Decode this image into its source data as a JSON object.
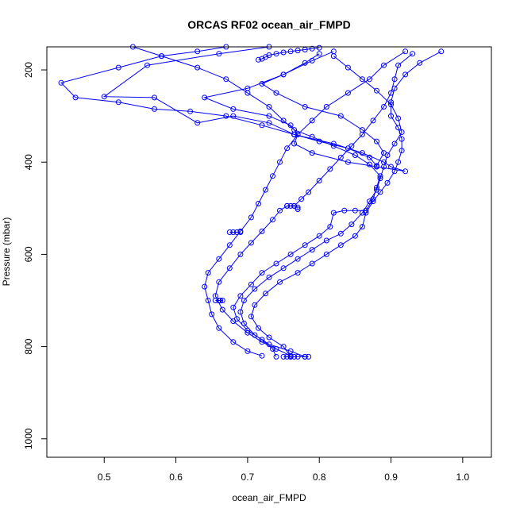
{
  "chart_data": {
    "type": "line",
    "title": "ORCAS RF02 ocean_air_FMPD",
    "xlabel": "ocean_air_FMPD",
    "ylabel": "Pressure (mbar)",
    "xlim": [
      0.42,
      1.04
    ],
    "ylim": [
      1040,
      150
    ],
    "y_inverted": true,
    "x_ticks": [
      0.5,
      0.6,
      0.7,
      0.8,
      0.9,
      1.0
    ],
    "x_tick_labels": [
      "0.5",
      "0.6",
      "0.7",
      "0.8",
      "0.9",
      "1.0"
    ],
    "y_ticks": [
      200,
      400,
      600,
      800,
      1000
    ],
    "y_tick_labels": [
      "200",
      "400",
      "600",
      "800",
      "1000"
    ],
    "grid": false,
    "legend": "none",
    "marker": "open-circle",
    "color": "#0000ff",
    "series": [
      {
        "values": [
          [
            0.72,
            820
          ],
          [
            0.7,
            810
          ],
          [
            0.68,
            790
          ],
          [
            0.66,
            760
          ],
          [
            0.65,
            730
          ],
          [
            0.645,
            700
          ],
          [
            0.64,
            670
          ],
          [
            0.645,
            640
          ],
          [
            0.66,
            610
          ],
          [
            0.675,
            580
          ],
          [
            0.69,
            550
          ],
          [
            0.705,
            520
          ],
          [
            0.715,
            490
          ],
          [
            0.725,
            460
          ],
          [
            0.735,
            430
          ],
          [
            0.745,
            400
          ],
          [
            0.755,
            370
          ],
          [
            0.77,
            340
          ],
          [
            0.79,
            310
          ],
          [
            0.81,
            280
          ],
          [
            0.84,
            250
          ],
          [
            0.87,
            220
          ],
          [
            0.89,
            190
          ],
          [
            0.92,
            160
          ]
        ]
      },
      {
        "values": [
          [
            0.76,
            820
          ],
          [
            0.74,
            805
          ],
          [
            0.72,
            790
          ],
          [
            0.7,
            770
          ],
          [
            0.68,
            745
          ],
          [
            0.665,
            720
          ],
          [
            0.655,
            690
          ],
          [
            0.66,
            660
          ],
          [
            0.675,
            630
          ],
          [
            0.69,
            600
          ],
          [
            0.705,
            575
          ],
          [
            0.72,
            550
          ],
          [
            0.735,
            525
          ],
          [
            0.745,
            505
          ],
          [
            0.755,
            495
          ],
          [
            0.765,
            495
          ],
          [
            0.775,
            480
          ],
          [
            0.785,
            465
          ],
          [
            0.8,
            440
          ],
          [
            0.815,
            415
          ],
          [
            0.83,
            390
          ],
          [
            0.845,
            365
          ],
          [
            0.86,
            340
          ],
          [
            0.875,
            310
          ],
          [
            0.89,
            280
          ],
          [
            0.9,
            250
          ],
          [
            0.905,
            220
          ],
          [
            0.91,
            190
          ],
          [
            0.93,
            165
          ]
        ]
      },
      {
        "values": [
          [
            0.78,
            822
          ],
          [
            0.76,
            810
          ],
          [
            0.73,
            795
          ],
          [
            0.71,
            775
          ],
          [
            0.695,
            750
          ],
          [
            0.69,
            725
          ],
          [
            0.695,
            700
          ],
          [
            0.71,
            675
          ],
          [
            0.73,
            650
          ],
          [
            0.75,
            630
          ],
          [
            0.77,
            610
          ],
          [
            0.79,
            590
          ],
          [
            0.81,
            570
          ],
          [
            0.83,
            555
          ],
          [
            0.845,
            535
          ],
          [
            0.86,
            510
          ],
          [
            0.87,
            485
          ],
          [
            0.88,
            460
          ],
          [
            0.885,
            435
          ],
          [
            0.89,
            410
          ],
          [
            0.895,
            385
          ],
          [
            0.905,
            360
          ],
          [
            0.915,
            335
          ],
          [
            0.91,
            305
          ],
          [
            0.9,
            275
          ],
          [
            0.88,
            245
          ],
          [
            0.86,
            220
          ],
          [
            0.84,
            195
          ],
          [
            0.82,
            170
          ]
        ]
      },
      {
        "values": [
          [
            0.76,
            822
          ],
          [
            0.75,
            800
          ],
          [
            0.73,
            780
          ],
          [
            0.715,
            760
          ],
          [
            0.705,
            735
          ],
          [
            0.71,
            710
          ],
          [
            0.725,
            685
          ],
          [
            0.745,
            660
          ],
          [
            0.77,
            640
          ],
          [
            0.79,
            620
          ],
          [
            0.81,
            600
          ],
          [
            0.83,
            580
          ],
          [
            0.85,
            560
          ],
          [
            0.86,
            540
          ],
          [
            0.865,
            510
          ],
          [
            0.875,
            485
          ],
          [
            0.885,
            465
          ],
          [
            0.895,
            445
          ],
          [
            0.905,
            420
          ],
          [
            0.91,
            400
          ],
          [
            0.915,
            375
          ],
          [
            0.915,
            350
          ],
          [
            0.91,
            325
          ],
          [
            0.9,
            300
          ],
          [
            0.9,
            270
          ],
          [
            0.905,
            240
          ],
          [
            0.92,
            210
          ],
          [
            0.94,
            185
          ],
          [
            0.97,
            160
          ]
        ]
      },
      {
        "values": [
          [
            0.74,
            822
          ],
          [
            0.735,
            805
          ],
          [
            0.72,
            785
          ],
          [
            0.7,
            765
          ],
          [
            0.685,
            740
          ],
          [
            0.68,
            715
          ],
          [
            0.69,
            690
          ],
          [
            0.705,
            665
          ],
          [
            0.72,
            640
          ],
          [
            0.74,
            620
          ],
          [
            0.76,
            600
          ],
          [
            0.78,
            580
          ],
          [
            0.8,
            560
          ],
          [
            0.815,
            540
          ],
          [
            0.82,
            510
          ],
          [
            0.835,
            505
          ],
          [
            0.85,
            505
          ],
          [
            0.865,
            505
          ],
          [
            0.875,
            480
          ],
          [
            0.88,
            455
          ],
          [
            0.885,
            430
          ],
          [
            0.87,
            405
          ],
          [
            0.85,
            385
          ],
          [
            0.82,
            365
          ],
          [
            0.79,
            345
          ],
          [
            0.765,
            330
          ],
          [
            0.75,
            310
          ],
          [
            0.73,
            280
          ],
          [
            0.7,
            250
          ],
          [
            0.67,
            220
          ],
          [
            0.63,
            195
          ],
          [
            0.58,
            170
          ],
          [
            0.54,
            150
          ]
        ]
      },
      {
        "values": [
          [
            0.765,
            340
          ],
          [
            0.72,
            320
          ],
          [
            0.67,
            300
          ],
          [
            0.62,
            290
          ],
          [
            0.57,
            285
          ],
          [
            0.52,
            270
          ],
          [
            0.46,
            260
          ],
          [
            0.44,
            228
          ],
          [
            0.52,
            195
          ],
          [
            0.58,
            170
          ],
          [
            0.63,
            160
          ],
          [
            0.67,
            150
          ]
        ]
      },
      {
        "values": [
          [
            0.765,
            340
          ],
          [
            0.73,
            315
          ],
          [
            0.68,
            300
          ],
          [
            0.63,
            315
          ],
          [
            0.57,
            260
          ],
          [
            0.5,
            258
          ],
          [
            0.56,
            190
          ],
          [
            0.66,
            165
          ],
          [
            0.73,
            150
          ]
        ]
      },
      {
        "values": [
          [
            0.765,
            340
          ],
          [
            0.82,
            360
          ],
          [
            0.86,
            380
          ],
          [
            0.89,
            400
          ],
          [
            0.9,
            410
          ],
          [
            0.92,
            420
          ],
          [
            0.88,
            410
          ],
          [
            0.84,
            400
          ],
          [
            0.79,
            380
          ],
          [
            0.765,
            360
          ],
          [
            0.77,
            340
          ],
          [
            0.76,
            320
          ],
          [
            0.73,
            300
          ],
          [
            0.68,
            285
          ],
          [
            0.64,
            260
          ],
          [
            0.7,
            240
          ],
          [
            0.75,
            210
          ],
          [
            0.79,
            180
          ],
          [
            0.82,
            160
          ]
        ]
      },
      {
        "values": [
          [
            0.765,
            340
          ],
          [
            0.8,
            355
          ],
          [
            0.84,
            370
          ],
          [
            0.87,
            390
          ],
          [
            0.88,
            408
          ],
          [
            0.89,
            380
          ],
          [
            0.88,
            355
          ],
          [
            0.86,
            330
          ],
          [
            0.83,
            300
          ],
          [
            0.78,
            280
          ],
          [
            0.74,
            250
          ],
          [
            0.72,
            230
          ],
          [
            0.75,
            210
          ],
          [
            0.78,
            185
          ],
          [
            0.8,
            165
          ]
        ]
      },
      {
        "values": [
          [
            0.75,
            822
          ],
          [
            0.755,
            822
          ],
          [
            0.76,
            822
          ],
          [
            0.765,
            822
          ],
          [
            0.77,
            822
          ],
          [
            0.78,
            822
          ],
          [
            0.785,
            822
          ]
        ]
      },
      {
        "values": [
          [
            0.755,
            495
          ],
          [
            0.76,
            495
          ],
          [
            0.765,
            495
          ],
          [
            0.77,
            498
          ],
          [
            0.77,
            502
          ]
        ]
      },
      {
        "values": [
          [
            0.655,
            700
          ],
          [
            0.66,
            700
          ],
          [
            0.662,
            700
          ],
          [
            0.665,
            700
          ]
        ]
      },
      {
        "values": [
          [
            0.675,
            552
          ],
          [
            0.68,
            552
          ],
          [
            0.685,
            552
          ],
          [
            0.69,
            552
          ]
        ]
      },
      {
        "values": [
          [
            0.715,
            178
          ],
          [
            0.72,
            176
          ],
          [
            0.725,
            172
          ],
          [
            0.73,
            168
          ],
          [
            0.74,
            165
          ],
          [
            0.75,
            162
          ],
          [
            0.76,
            160
          ],
          [
            0.77,
            158
          ],
          [
            0.78,
            156
          ],
          [
            0.79,
            154
          ],
          [
            0.8,
            152
          ]
        ]
      }
    ]
  }
}
